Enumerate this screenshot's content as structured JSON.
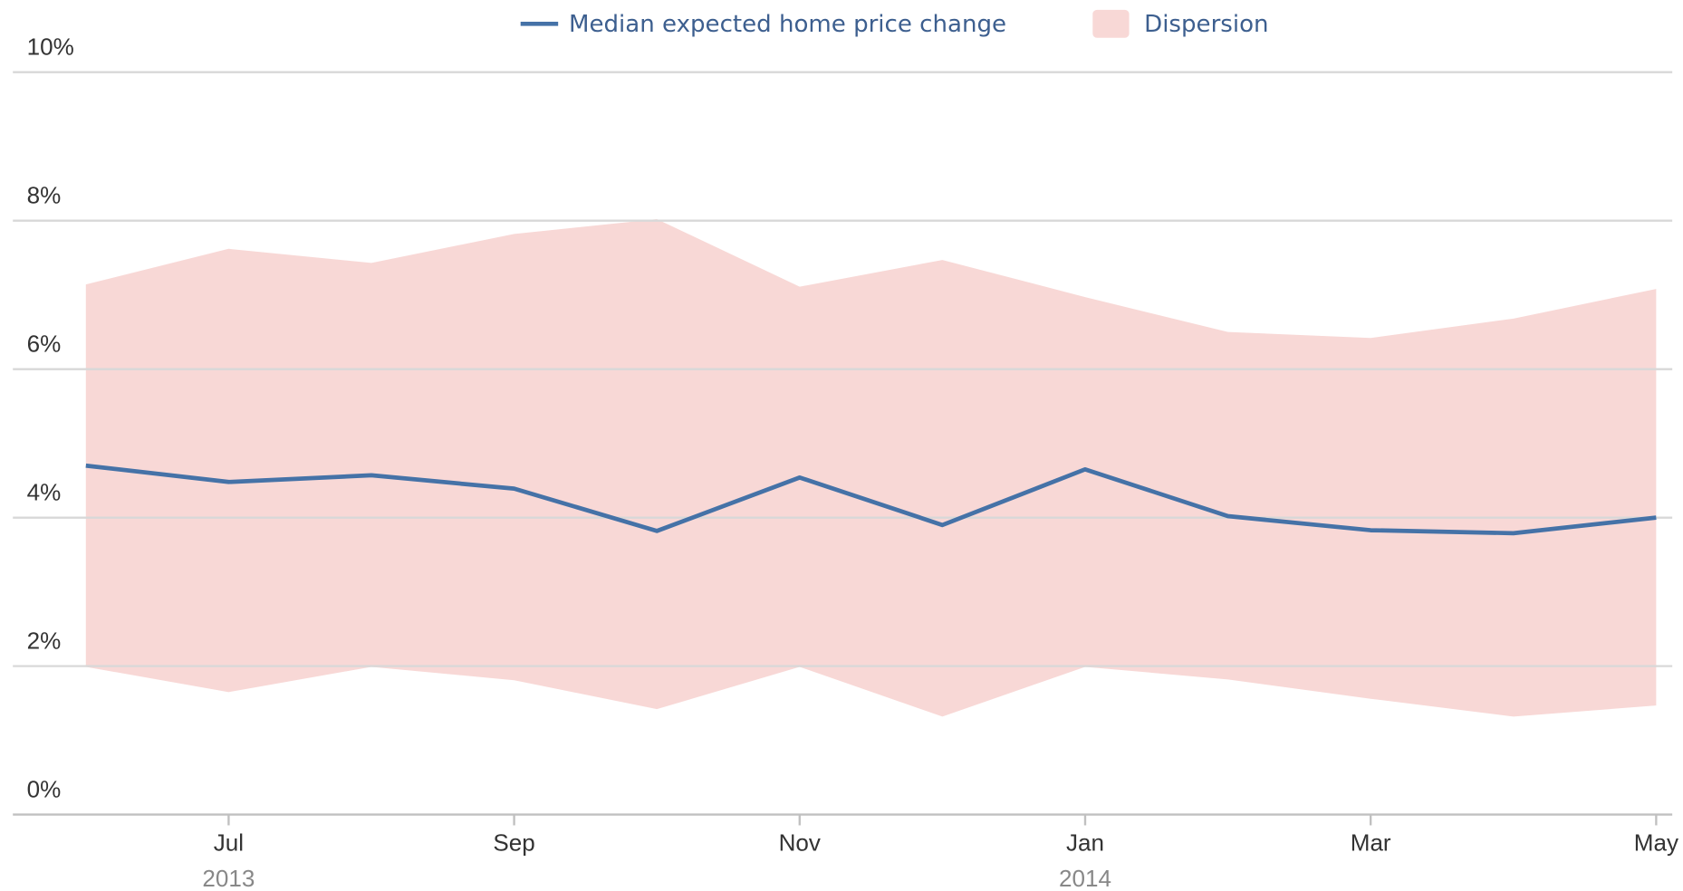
{
  "chart_data": {
    "type": "line-band",
    "categories": [
      null,
      "Jul",
      null,
      "Sep",
      null,
      "Nov",
      null,
      "Jan",
      null,
      "Mar",
      null,
      "May"
    ],
    "x_groups": [
      {
        "label": "2013",
        "start": 1
      },
      {
        "label": "2014",
        "start": 7
      }
    ],
    "series": [
      {
        "name": "Dispersion",
        "kind": "band",
        "color": "#f8d8d6",
        "low": [
          1.99,
          1.65,
          1.99,
          1.81,
          1.42,
          1.99,
          1.32,
          1.99,
          1.82,
          1.56,
          1.32,
          1.47
        ],
        "high": [
          7.14,
          7.62,
          7.43,
          7.82,
          8.02,
          7.11,
          7.47,
          6.97,
          6.5,
          6.42,
          6.68,
          7.08
        ]
      },
      {
        "name": "Median expected home price change",
        "kind": "line",
        "color": "#4572a7",
        "values": [
          4.7,
          4.48,
          4.57,
          4.39,
          3.82,
          4.54,
          3.9,
          4.65,
          4.02,
          3.83,
          3.79,
          4.0
        ]
      }
    ],
    "ylim": [
      0,
      10
    ],
    "yticks": [
      {
        "value": 0,
        "label": "0%"
      },
      {
        "value": 2,
        "label": "2%"
      },
      {
        "value": 4,
        "label": "4%"
      },
      {
        "value": 6,
        "label": "6%"
      },
      {
        "value": 8,
        "label": "8%"
      },
      {
        "value": 10,
        "label": "10%"
      }
    ],
    "grid": true,
    "legend": "top"
  }
}
